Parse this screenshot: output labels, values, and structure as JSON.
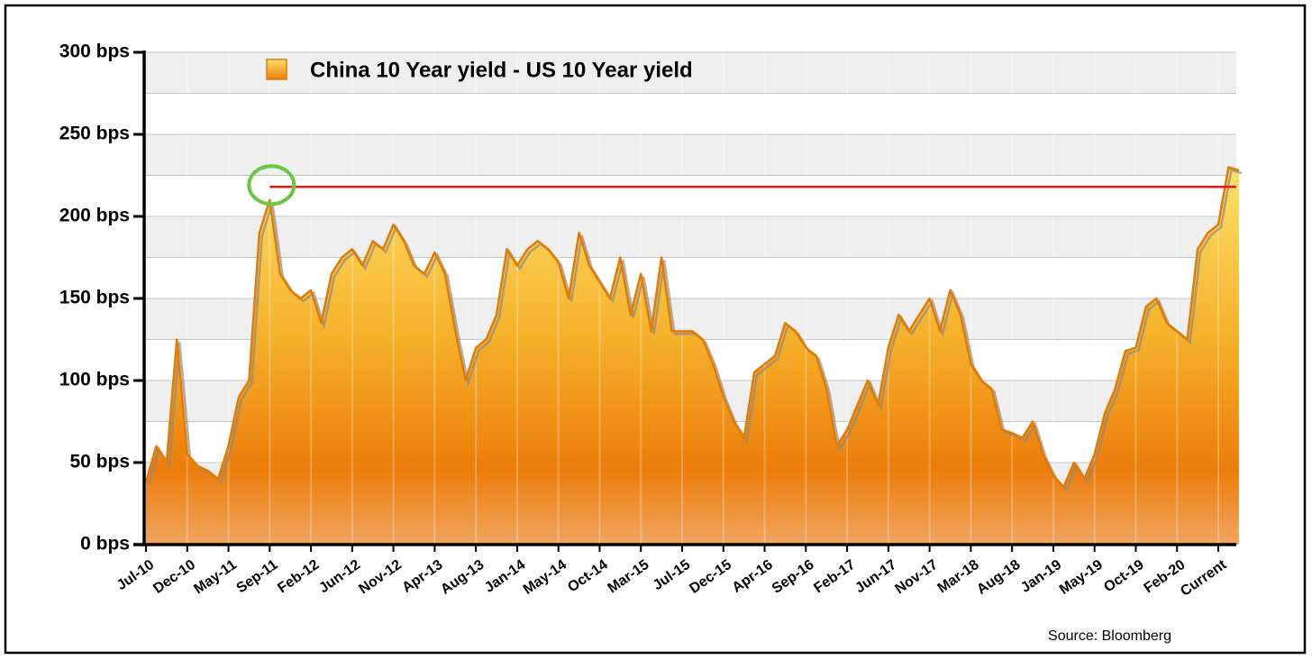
{
  "chart_data": {
    "type": "area",
    "categories": [
      "Jul-10",
      null,
      null,
      null,
      "Dec-10",
      null,
      null,
      null,
      "May-11",
      null,
      null,
      null,
      "Sep-11",
      null,
      null,
      null,
      "Feb-12",
      null,
      null,
      null,
      "Jun-12",
      null,
      null,
      null,
      "Nov-12",
      null,
      null,
      null,
      "Apr-13",
      null,
      null,
      null,
      "Aug-13",
      null,
      null,
      null,
      "Jan-14",
      null,
      null,
      null,
      "May-14",
      null,
      null,
      null,
      "Oct-14",
      null,
      null,
      null,
      "Mar-15",
      null,
      null,
      null,
      "Jul-15",
      null,
      null,
      null,
      "Dec-15",
      null,
      null,
      null,
      "Apr-16",
      null,
      null,
      null,
      "Sep-16",
      null,
      null,
      null,
      "Feb-17",
      null,
      null,
      null,
      "Jun-17",
      null,
      null,
      null,
      "Nov-17",
      null,
      null,
      null,
      "Mar-18",
      null,
      null,
      null,
      "Aug-18",
      null,
      null,
      null,
      "Jan-19",
      null,
      null,
      null,
      "May-19",
      null,
      null,
      null,
      "Oct-19",
      null,
      null,
      null,
      "Feb-20",
      null,
      null,
      null,
      "Current",
      null,
      null
    ],
    "series": [
      {
        "name": "China 10 Year yield - US 10 Year yield",
        "color": "#e57a00",
        "values": [
          38,
          60,
          50,
          125,
          55,
          48,
          45,
          40,
          60,
          90,
          100,
          190,
          210,
          165,
          155,
          150,
          155,
          135,
          165,
          175,
          180,
          170,
          185,
          180,
          195,
          185,
          170,
          165,
          178,
          165,
          130,
          100,
          120,
          125,
          140,
          180,
          170,
          180,
          185,
          180,
          172,
          150,
          190,
          170,
          160,
          150,
          175,
          140,
          165,
          130,
          175,
          130,
          130,
          130,
          125,
          110,
          90,
          75,
          65,
          105,
          110,
          115,
          135,
          130,
          120,
          115,
          95,
          60,
          70,
          85,
          100,
          85,
          120,
          140,
          130,
          140,
          150,
          130,
          155,
          140,
          110,
          100,
          95,
          70,
          68,
          65,
          75,
          55,
          42,
          35,
          50,
          40,
          55,
          80,
          95,
          118,
          120,
          145,
          150,
          135,
          130,
          125,
          180,
          190,
          195,
          230,
          228
        ]
      }
    ],
    "ylim": [
      0,
      300
    ],
    "yticks": [
      {
        "value": 0,
        "label": "0 bps"
      },
      {
        "value": 50,
        "label": "50 bps"
      },
      {
        "value": 100,
        "label": "100 bps"
      },
      {
        "value": 150,
        "label": "150 bps"
      },
      {
        "value": 200,
        "label": "200 bps"
      },
      {
        "value": 250,
        "label": "250 bps"
      },
      {
        "value": 300,
        "label": "300 bps"
      }
    ],
    "minor_yticks": [
      25,
      75,
      125,
      175,
      225,
      275
    ],
    "grid": true,
    "reference_line": {
      "value": 218,
      "color": "#e8151b"
    },
    "source": "Source: Bloomberg"
  }
}
